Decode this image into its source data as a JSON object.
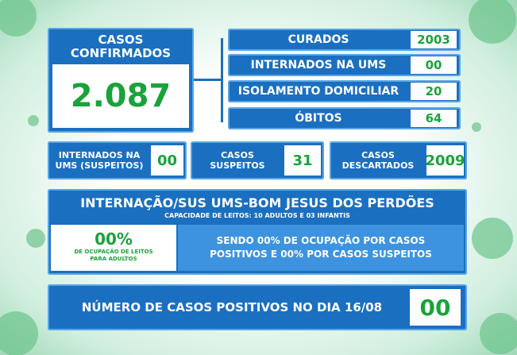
{
  "confirmed": {
    "label": "CASOS CONFIRMADOS",
    "value": "2.087"
  },
  "status_list": [
    {
      "label": "CURADOS",
      "value": "2003"
    },
    {
      "label": "INTERNADOS NA UMS",
      "value": "00"
    },
    {
      "label": "ISOLAMENTO DOMICILIAR",
      "value": "20"
    },
    {
      "label": "ÓBITOS",
      "value": "64"
    }
  ],
  "small_boxes": [
    {
      "label": "INTERNADOS NA UMS (SUSPEITOS)",
      "value": "00"
    },
    {
      "label": "CASOS SUSPEITOS",
      "value": "31"
    },
    {
      "label": "CASOS DESCARTADOS",
      "value": "2009"
    }
  ],
  "hospital": {
    "title": "INTERNAÇÃO/SUS UMS-BOM JESUS DOS PERDÕES",
    "subtitle": "CAPACIDADE DE LEITOS: 10 ADULTOS E 03 INFANTIS",
    "occupancy_value": "00%",
    "occupancy_label": "DE OCUPAÇÃO DE LEITOS PARA ADULTOS",
    "note": "SENDO 00% DE OCUPAÇÃO POR CASOS POSITIVOS E 00% POR CASOS SUSPEITOS"
  },
  "daily": {
    "label": "NÚMERO DE CASOS POSITIVOS NO DIA 16/08",
    "value": "00"
  }
}
